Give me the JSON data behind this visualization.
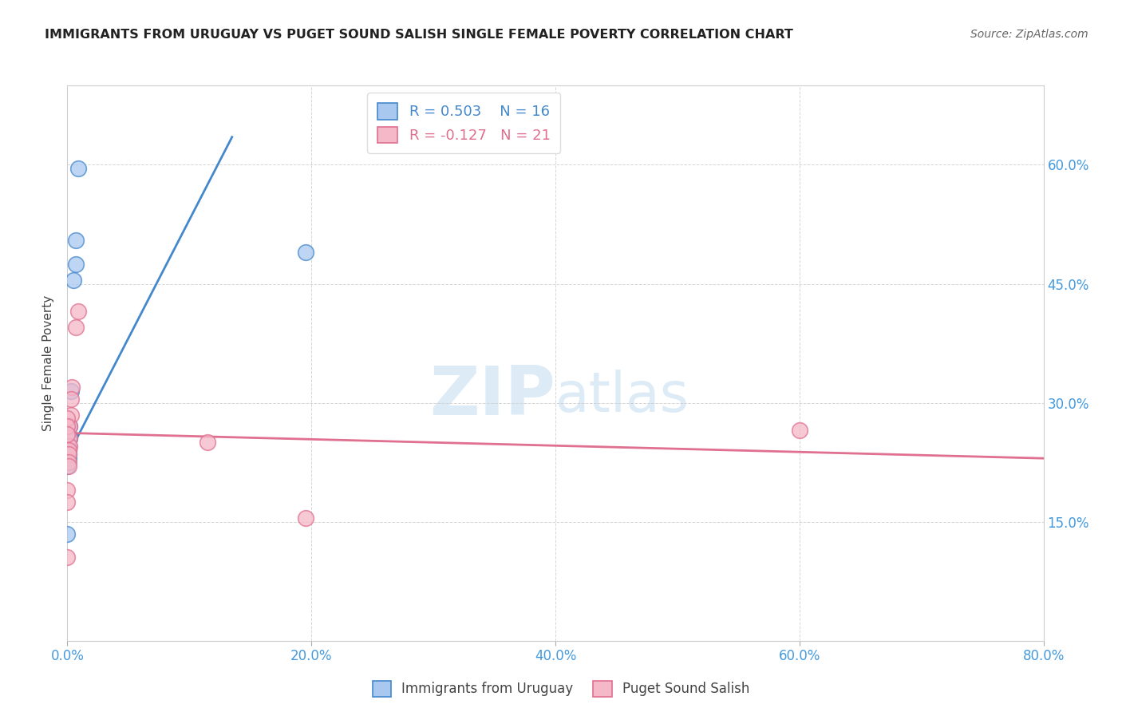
{
  "title": "IMMIGRANTS FROM URUGUAY VS PUGET SOUND SALISH SINGLE FEMALE POVERTY CORRELATION CHART",
  "source": "Source: ZipAtlas.com",
  "ylabel": "Single Female Poverty",
  "watermark_zip": "ZIP",
  "watermark_atlas": "atlas",
  "blue_R": 0.503,
  "blue_N": 16,
  "pink_R": -0.127,
  "pink_N": 21,
  "xmin": 0.0,
  "xmax": 0.8,
  "ymin": 0.0,
  "ymax": 0.7,
  "yticks": [
    0.15,
    0.3,
    0.45,
    0.6
  ],
  "ytick_labels": [
    "15.0%",
    "30.0%",
    "45.0%",
    "60.0%"
  ],
  "xticks": [
    0.0,
    0.2,
    0.4,
    0.6,
    0.8
  ],
  "blue_scatter_x": [
    0.009,
    0.007,
    0.007,
    0.005,
    0.003,
    0.002,
    0.002,
    0.001,
    0.001,
    0.001,
    0.001,
    0.001,
    0.0,
    0.0,
    0.0,
    0.195
  ],
  "blue_scatter_y": [
    0.595,
    0.505,
    0.475,
    0.455,
    0.315,
    0.27,
    0.255,
    0.255,
    0.245,
    0.24,
    0.235,
    0.23,
    0.225,
    0.22,
    0.135,
    0.49
  ],
  "pink_scatter_x": [
    0.009,
    0.007,
    0.004,
    0.003,
    0.003,
    0.002,
    0.002,
    0.002,
    0.001,
    0.001,
    0.001,
    0.001,
    0.0,
    0.0,
    0.0,
    0.0,
    0.0,
    0.0,
    0.115,
    0.6,
    0.195
  ],
  "pink_scatter_y": [
    0.415,
    0.395,
    0.32,
    0.305,
    0.285,
    0.27,
    0.255,
    0.245,
    0.24,
    0.235,
    0.225,
    0.22,
    0.28,
    0.27,
    0.26,
    0.19,
    0.175,
    0.105,
    0.25,
    0.265,
    0.155
  ],
  "blue_line_x": [
    0.0,
    0.135
  ],
  "blue_line_y": [
    0.232,
    0.635
  ],
  "pink_line_x": [
    0.0,
    0.8
  ],
  "pink_line_y": [
    0.262,
    0.23
  ],
  "blue_color": "#A8C8F0",
  "pink_color": "#F5B8C8",
  "blue_line_color": "#4488CC",
  "pink_line_color": "#E07090",
  "title_color": "#222222",
  "axis_label_color": "#4499DD",
  "background_color": "#ffffff",
  "grid_color": "#cccccc",
  "legend_label_blue": "Immigrants from Uruguay",
  "legend_label_pink": "Puget Sound Salish"
}
